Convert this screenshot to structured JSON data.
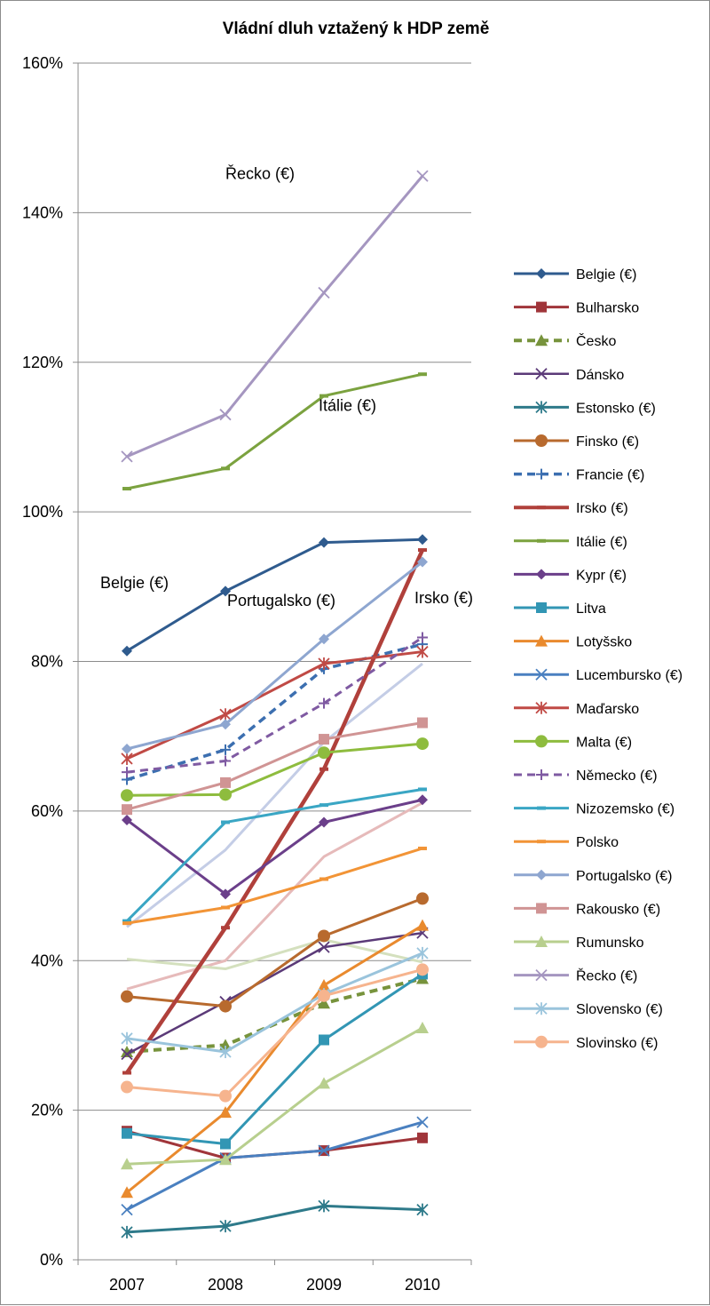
{
  "chart_data": {
    "type": "line",
    "title": "Vládní dluh vztažený k HDP země",
    "xlabel": "",
    "ylabel": "",
    "x": [
      "2007",
      "2008",
      "2009",
      "2010"
    ],
    "ylim": [
      0,
      160
    ],
    "yticks": [
      "0%",
      "20%",
      "40%",
      "60%",
      "80%",
      "100%",
      "120%",
      "140%",
      "160%"
    ],
    "grid": true,
    "legend_position": "right",
    "series": [
      {
        "name": "Belgie (€)",
        "values": [
          81.4,
          89.4,
          95.9,
          96.3
        ],
        "color": "#2f5b8e",
        "marker": "diamond",
        "dash": false,
        "width": 3
      },
      {
        "name": "Bulharsko",
        "values": [
          17.2,
          13.6,
          14.6,
          16.3
        ],
        "color": "#a0353a",
        "marker": "square",
        "dash": false,
        "width": 3
      },
      {
        "name": "Česko",
        "values": [
          27.8,
          28.7,
          34.3,
          37.6
        ],
        "color": "#77933c",
        "marker": "triangle",
        "dash": true,
        "width": 4
      },
      {
        "name": "Dánsko",
        "values": [
          27.5,
          34.5,
          41.8,
          43.7
        ],
        "color": "#5b3a78",
        "marker": "x",
        "dash": false,
        "width": 2.5
      },
      {
        "name": "Estonsko (€)",
        "values": [
          3.7,
          4.5,
          7.2,
          6.7
        ],
        "color": "#2e7a8a",
        "marker": "star",
        "dash": false,
        "width": 3
      },
      {
        "name": "Finsko (€)",
        "values": [
          35.2,
          33.9,
          43.3,
          48.3
        ],
        "color": "#b86a2e",
        "marker": "circle",
        "dash": false,
        "width": 3
      },
      {
        "name": "Francie (€)",
        "values": [
          64.2,
          68.2,
          79.0,
          82.3
        ],
        "color": "#3c6fb0",
        "marker": "plus",
        "dash": true,
        "width": 3.5
      },
      {
        "name": "Irsko (€)",
        "values": [
          25.0,
          44.4,
          65.6,
          94.9
        ],
        "color": "#b0403b",
        "marker": "bar",
        "dash": false,
        "width": 4.5
      },
      {
        "name": "Itálie (€)",
        "values": [
          103.1,
          105.8,
          115.5,
          118.4
        ],
        "color": "#7ba23f",
        "marker": "bar",
        "dash": false,
        "width": 3
      },
      {
        "name": "Kypr (€)",
        "values": [
          58.8,
          48.9,
          58.5,
          61.5
        ],
        "color": "#6b3f8a",
        "marker": "diamond",
        "dash": false,
        "width": 3
      },
      {
        "name": "Litva",
        "values": [
          16.9,
          15.5,
          29.4,
          38.2
        ],
        "color": "#3296b4",
        "marker": "square",
        "dash": false,
        "width": 3
      },
      {
        "name": "Lotyšsko",
        "values": [
          9.0,
          19.7,
          36.7,
          44.7
        ],
        "color": "#e98a2e",
        "marker": "triangle",
        "dash": false,
        "width": 3
      },
      {
        "name": "Lucembursko (€)",
        "values": [
          6.7,
          13.6,
          14.6,
          18.4
        ],
        "color": "#4a80c0",
        "marker": "x",
        "dash": false,
        "width": 3
      },
      {
        "name": "Maďarsko",
        "values": [
          67.0,
          72.9,
          79.7,
          81.3
        ],
        "color": "#c04a45",
        "marker": "star",
        "dash": false,
        "width": 3
      },
      {
        "name": "Malta (€)",
        "values": [
          62.1,
          62.2,
          67.8,
          69.0
        ],
        "color": "#8ebc3e",
        "marker": "circle",
        "dash": false,
        "width": 3
      },
      {
        "name": "Německo (€)",
        "values": [
          65.2,
          66.7,
          74.4,
          83.2
        ],
        "color": "#7f5aa2",
        "marker": "plus",
        "dash": true,
        "width": 3
      },
      {
        "name": "Nizozemsko (€)",
        "values": [
          45.3,
          58.5,
          60.8,
          62.9
        ],
        "color": "#3aa6c4",
        "marker": "bar",
        "dash": false,
        "width": 3
      },
      {
        "name": "Polsko",
        "values": [
          45.0,
          47.1,
          50.9,
          55.0
        ],
        "color": "#f29436",
        "marker": "bar",
        "dash": false,
        "width": 3
      },
      {
        "name": "Portugalsko (€)",
        "values": [
          68.3,
          71.6,
          83.0,
          93.3
        ],
        "color": "#8ea6d0",
        "marker": "diamond",
        "dash": false,
        "width": 3
      },
      {
        "name": "Rakousko (€)",
        "values": [
          60.2,
          63.8,
          69.6,
          71.8
        ],
        "color": "#d09494",
        "marker": "square",
        "dash": false,
        "width": 3
      },
      {
        "name": "Rumunsko",
        "values": [
          12.8,
          13.4,
          23.6,
          31.0
        ],
        "color": "#b8cf8e",
        "marker": "triangle",
        "dash": false,
        "width": 3
      },
      {
        "name": "Řecko (€)",
        "values": [
          107.4,
          113.0,
          129.3,
          144.9
        ],
        "color": "#a596c0",
        "marker": "x",
        "dash": false,
        "width": 3
      },
      {
        "name": "Slovensko (€)",
        "values": [
          29.6,
          27.8,
          35.5,
          41.0
        ],
        "color": "#9ac4dc",
        "marker": "star",
        "dash": false,
        "width": 3
      },
      {
        "name": "Slovinsko (€)",
        "values": [
          23.1,
          21.9,
          35.3,
          38.8
        ],
        "color": "#f6b48e",
        "marker": "circle",
        "dash": false,
        "width": 3
      },
      {
        "name": "",
        "values": [
          36.2,
          40.0,
          53.9,
          61.1
        ],
        "color": "#e6baba",
        "marker": "none",
        "dash": false,
        "width": 3
      },
      {
        "name": "",
        "values": [
          40.2,
          38.9,
          42.8,
          39.8
        ],
        "color": "#d4e0be",
        "marker": "none",
        "dash": false,
        "width": 3
      },
      {
        "name": "",
        "values": [
          44.5,
          54.8,
          69.2,
          79.7
        ],
        "color": "#c4cde6",
        "marker": "none",
        "dash": false,
        "width": 3
      }
    ],
    "annotations": [
      {
        "text": "Řecko (€)",
        "x": "2008",
        "y": 144.5
      },
      {
        "text": "Itálie (€)",
        "x": "2009",
        "y": 113.5
      },
      {
        "text": "Belgie (€)",
        "x": "2007",
        "y": 89.8
      },
      {
        "text": "Portugalsko (€)",
        "x": "2008",
        "y": 87.4
      },
      {
        "text": "Irsko (€)",
        "x": "2010",
        "y": 87.8
      }
    ]
  }
}
